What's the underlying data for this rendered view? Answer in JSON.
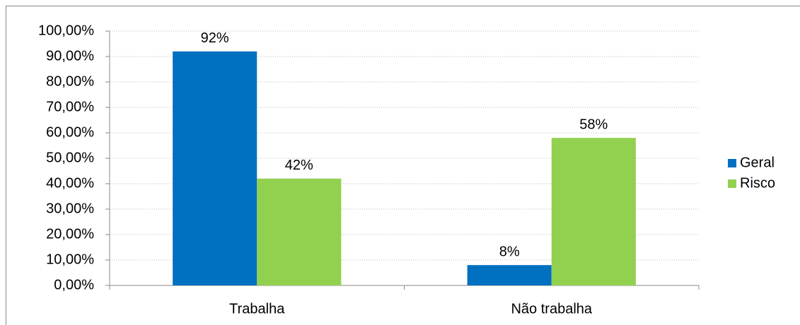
{
  "chart_data": {
    "type": "bar",
    "categories": [
      "Trabalha",
      "Não trabalha"
    ],
    "series": [
      {
        "name": "Geral",
        "color": "#0070c0",
        "values": [
          92,
          8
        ],
        "value_labels": [
          "92%",
          "8%"
        ]
      },
      {
        "name": "Risco",
        "color": "#92d050",
        "values": [
          42,
          58
        ],
        "value_labels": [
          "42%",
          "58%"
        ]
      }
    ],
    "ylim": [
      0,
      100
    ],
    "yticks": [
      {
        "value": 0,
        "label": "0,00%"
      },
      {
        "value": 10,
        "label": "10,00%"
      },
      {
        "value": 20,
        "label": "20,00%"
      },
      {
        "value": 30,
        "label": "30,00%"
      },
      {
        "value": 40,
        "label": "40,00%"
      },
      {
        "value": 50,
        "label": "50,00%"
      },
      {
        "value": 60,
        "label": "60,00%"
      },
      {
        "value": 70,
        "label": "70,00%"
      },
      {
        "value": 80,
        "label": "80,00%"
      },
      {
        "value": 90,
        "label": "90,00%"
      },
      {
        "value": 100,
        "label": "100,00%"
      }
    ],
    "grid": true,
    "legend": "right"
  }
}
